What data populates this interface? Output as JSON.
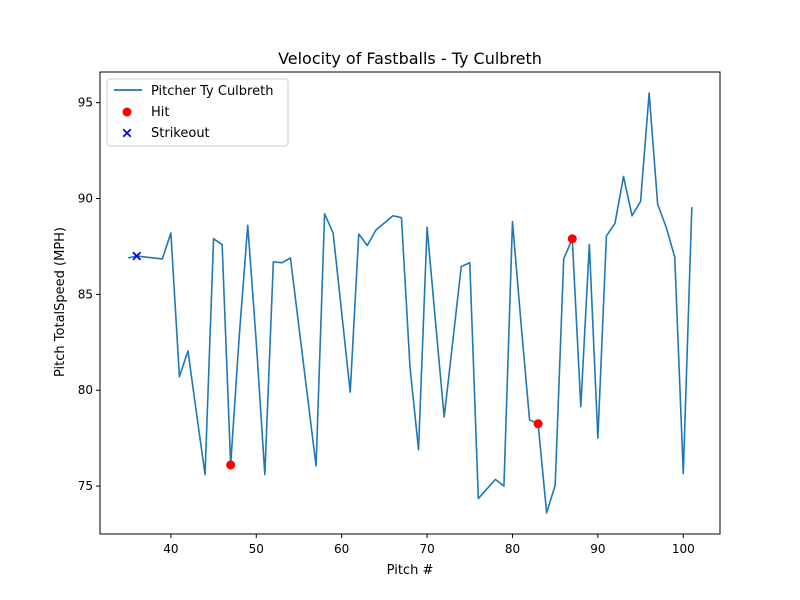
{
  "chart_data": {
    "type": "line",
    "title": "Velocity of Fastballs - Ty Culbreth",
    "xlabel": "Pitch #",
    "ylabel": "Pitch TotalSpeed (MPH)",
    "xlim": [
      31.7,
      104.3
    ],
    "ylim": [
      72.5,
      96.6
    ],
    "xticks": [
      40,
      50,
      60,
      70,
      80,
      90,
      100
    ],
    "yticks": [
      75,
      80,
      85,
      90,
      95
    ],
    "grid": false,
    "legend_position": "top-left",
    "series": [
      {
        "name": "Pitcher Ty Culbreth",
        "kind": "line",
        "color": "#1f77b4",
        "x": [
          35,
          36,
          39,
          40,
          41,
          42,
          43,
          44,
          45,
          46,
          47,
          48,
          49,
          50,
          51,
          52,
          53,
          54,
          57,
          58,
          59,
          61,
          62,
          63,
          64,
          66,
          67,
          68,
          69,
          70,
          71,
          72,
          73,
          74,
          75,
          76,
          78,
          79,
          80,
          81,
          82,
          83,
          84,
          85,
          86,
          87,
          88,
          89,
          90,
          91,
          92,
          93,
          94,
          95,
          96,
          97,
          98,
          99,
          100,
          101
        ],
        "y": [
          86.9,
          87.0,
          86.85,
          88.2,
          80.7,
          82.05,
          78.8,
          75.6,
          87.9,
          87.6,
          76.1,
          82.8,
          88.6,
          82.5,
          75.6,
          86.7,
          86.65,
          86.9,
          76.05,
          89.2,
          88.2,
          79.9,
          88.15,
          87.55,
          88.35,
          89.1,
          89.0,
          81.2,
          76.9,
          88.5,
          83.5,
          78.6,
          82.5,
          86.45,
          86.65,
          74.35,
          75.35,
          75.0,
          88.8,
          83.5,
          78.45,
          78.25,
          73.6,
          75.05,
          86.85,
          87.9,
          79.15,
          87.6,
          77.5,
          88.05,
          88.7,
          91.15,
          89.1,
          89.85,
          95.5,
          89.7,
          88.5,
          86.95,
          75.65,
          89.55
        ]
      },
      {
        "name": "Hit",
        "kind": "scatter",
        "marker": "circle",
        "color": "#ff0000",
        "x": [
          47,
          83,
          87
        ],
        "y": [
          76.1,
          78.25,
          87.9
        ]
      },
      {
        "name": "Strikeout",
        "kind": "scatter",
        "marker": "x",
        "color": "#0000ff",
        "x": [
          36
        ],
        "y": [
          87.0
        ]
      }
    ]
  }
}
